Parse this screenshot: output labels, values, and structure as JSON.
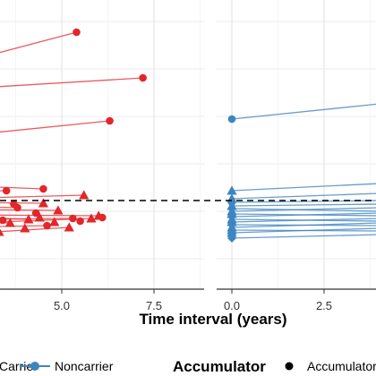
{
  "chart_data": {
    "type": "scatter",
    "xlabel": "Time interval (years)",
    "x_ticks_left": [
      "5.0",
      "7.5"
    ],
    "x_ticks_right": [
      "0.0",
      "2.5"
    ],
    "xlim_left": [
      2.0,
      9.0
    ],
    "xlim_right": [
      -0.5,
      4.0
    ],
    "threshold_line": "dashed",
    "legend": {
      "position": "bottom",
      "entries": [
        "Carrier",
        "Noncarrier"
      ],
      "accumulator_title": "Accumulator",
      "accumulator_entries": [
        "Accumulator"
      ]
    },
    "colors": {
      "carrier": "#e3262a",
      "noncarrier": "#3d85c0"
    },
    "carrier_lines": [
      {
        "x0": 2.0,
        "y0": 73,
        "x1": 5.4,
        "y1": 36,
        "shape": "circle"
      },
      {
        "x0": 2.0,
        "y0": 100,
        "x1": 7.2,
        "y1": 87,
        "shape": "circle"
      },
      {
        "x0": 2.0,
        "y0": 153,
        "x1": 6.3,
        "y1": 135,
        "shape": "circle"
      },
      {
        "x0": 2.0,
        "y0": 207,
        "x1": 4.5,
        "y1": 211,
        "shape": "circle"
      },
      {
        "x0": 2.0,
        "y0": 214,
        "x1": 3.5,
        "y1": 213,
        "shape": "circle"
      },
      {
        "x0": 2.0,
        "y0": 222,
        "x1": 5.6,
        "y1": 218,
        "shape": "triangle"
      },
      {
        "x0": 2.0,
        "y0": 226,
        "x1": 4.5,
        "y1": 227,
        "shape": "triangle"
      },
      {
        "x0": 2.0,
        "y0": 230,
        "x1": 3.8,
        "y1": 232,
        "shape": "circle"
      },
      {
        "x0": 2.0,
        "y0": 234,
        "x1": 4.9,
        "y1": 235,
        "shape": "triangle"
      },
      {
        "x0": 2.0,
        "y0": 237,
        "x1": 3.2,
        "y1": 236,
        "shape": "circle"
      },
      {
        "x0": 2.0,
        "y0": 240,
        "x1": 6.0,
        "y1": 241,
        "shape": "triangle"
      },
      {
        "x0": 2.0,
        "y0": 242,
        "x1": 4.1,
        "y1": 245,
        "shape": "triangle"
      },
      {
        "x0": 2.0,
        "y0": 245,
        "x1": 5.3,
        "y1": 244,
        "shape": "circle"
      },
      {
        "x0": 2.0,
        "y0": 248,
        "x1": 3.6,
        "y1": 249,
        "shape": "triangle"
      },
      {
        "x0": 2.0,
        "y0": 250,
        "x1": 5.8,
        "y1": 244,
        "shape": "triangle"
      },
      {
        "x0": 2.0,
        "y0": 254,
        "x1": 4.6,
        "y1": 252,
        "shape": "circle"
      },
      {
        "x0": 2.0,
        "y0": 258,
        "x1": 3.3,
        "y1": 259,
        "shape": "triangle"
      },
      {
        "x0": 2.0,
        "y0": 262,
        "x1": 5.2,
        "y1": 254,
        "shape": "triangle"
      }
    ],
    "carrier_extra_points": [
      {
        "x": 2.8,
        "y": 222,
        "shape": "circle"
      },
      {
        "x": 3.1,
        "y": 238,
        "shape": "triangle"
      },
      {
        "x": 4.3,
        "y": 238,
        "shape": "circle"
      },
      {
        "x": 3.4,
        "y": 246,
        "shape": "circle"
      },
      {
        "x": 4.8,
        "y": 248,
        "shape": "triangle"
      },
      {
        "x": 6.1,
        "y": 243,
        "shape": "circle"
      },
      {
        "x": 2.6,
        "y": 252,
        "shape": "circle"
      },
      {
        "x": 4.0,
        "y": 255,
        "shape": "triangle"
      },
      {
        "x": 2.9,
        "y": 262,
        "shape": "triangle"
      },
      {
        "x": 4.4,
        "y": 243,
        "shape": "triangle"
      },
      {
        "x": 3.7,
        "y": 228,
        "shape": "circle"
      },
      {
        "x": 5.5,
        "y": 247,
        "shape": "circle"
      }
    ],
    "noncarrier_lines": [
      {
        "x0": 0.0,
        "y0": 133,
        "x1": 4.0,
        "y1": 116,
        "shape": "circle"
      },
      {
        "x0": 0.0,
        "y0": 213,
        "x1": 4.0,
        "y1": 205,
        "shape": "triangle"
      },
      {
        "x0": 0.0,
        "y0": 222,
        "x1": 4.0,
        "y1": 216,
        "shape": "triangle"
      },
      {
        "x0": 0.0,
        "y0": 226,
        "x1": 4.0,
        "y1": 224,
        "shape": "circle"
      },
      {
        "x0": 0.0,
        "y0": 230,
        "x1": 4.0,
        "y1": 228,
        "shape": "triangle"
      },
      {
        "x0": 0.0,
        "y0": 233,
        "x1": 4.0,
        "y1": 236,
        "shape": "diamond"
      },
      {
        "x0": 0.0,
        "y0": 236,
        "x1": 4.0,
        "y1": 232,
        "shape": "triangle"
      },
      {
        "x0": 0.0,
        "y0": 239,
        "x1": 4.0,
        "y1": 241,
        "shape": "triangle"
      },
      {
        "x0": 0.0,
        "y0": 242,
        "x1": 4.0,
        "y1": 238,
        "shape": "diamond"
      },
      {
        "x0": 0.0,
        "y0": 245,
        "x1": 4.0,
        "y1": 247,
        "shape": "triangle"
      },
      {
        "x0": 0.0,
        "y0": 248,
        "x1": 4.0,
        "y1": 244,
        "shape": "triangle"
      },
      {
        "x0": 0.0,
        "y0": 251,
        "x1": 4.0,
        "y1": 252,
        "shape": "diamond"
      },
      {
        "x0": 0.0,
        "y0": 254,
        "x1": 4.0,
        "y1": 249,
        "shape": "triangle"
      },
      {
        "x0": 0.0,
        "y0": 257,
        "x1": 4.0,
        "y1": 258,
        "shape": "triangle"
      },
      {
        "x0": 0.0,
        "y0": 260,
        "x1": 4.0,
        "y1": 255,
        "shape": "triangle"
      },
      {
        "x0": 0.0,
        "y0": 266,
        "x1": 4.0,
        "y1": 262,
        "shape": "diamond"
      }
    ]
  }
}
